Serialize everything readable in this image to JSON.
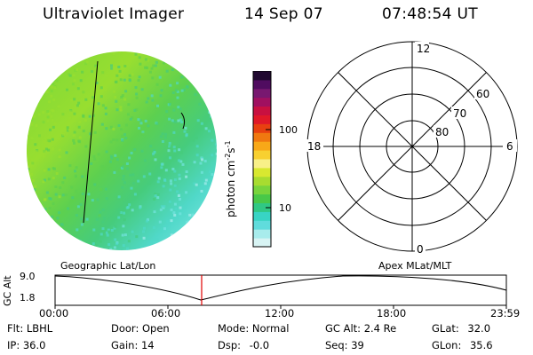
{
  "header": {
    "instrument": "Ultraviolet Imager",
    "date": "14 Sep 07",
    "time": "07:48:54 UT"
  },
  "colorbar": {
    "unit_label": "photon cm",
    "unit_exp1": "-2",
    "unit_s": "s",
    "unit_exp2": "-1",
    "tick_high": "100",
    "tick_low": "10",
    "colors": [
      "#d8f4f4",
      "#a8ecec",
      "#60dcdc",
      "#38d4c4",
      "#30c884",
      "#48c848",
      "#78d43c",
      "#a8dc30",
      "#d8e830",
      "#f8f088",
      "#f8d030",
      "#f8a818",
      "#f07810",
      "#e84010",
      "#e01828",
      "#c81040",
      "#a01060",
      "#781870",
      "#500c60",
      "#200830"
    ]
  },
  "polar": {
    "mlt_top": "12",
    "mlt_bottom": "0",
    "mlt_left": "18",
    "mlt_right": "6",
    "lat_60": "60",
    "lat_70": "70",
    "lat_80": "80"
  },
  "image": {
    "disk_colors": [
      "#7ad83a",
      "#98de30",
      "#5cd050",
      "#46cc7c",
      "#50d8c8",
      "#74e4e0",
      "#a6ecec"
    ]
  },
  "timeline": {
    "left_title": "Geographic Lat/Lon",
    "right_title": "Apex MLat/MLT",
    "axis_label": "GC Alt",
    "y_high": "9.0",
    "y_low": "1.8",
    "x_ticks": [
      "00:00",
      "06:00",
      "12:00",
      "18:00",
      "23:59"
    ],
    "marker_color": "#e00000"
  },
  "status": {
    "flt_label": "Flt:",
    "flt_value": "LBHL",
    "ip_label": "IP:",
    "ip_value": "36.0",
    "door_label": "Door:",
    "door_value": "Open",
    "gain_label": "Gain:",
    "gain_value": "14",
    "mode_label": "Mode:",
    "mode_value": "Normal",
    "dsp_label": "Dsp:",
    "dsp_value": "-0.0",
    "gcalt_label": "GC Alt:",
    "gcalt_value": "2.4 Re",
    "seq_label": "Seq:",
    "seq_value": "39",
    "glat_label": "GLat:",
    "glat_value": "32.0",
    "glon_label": "GLon:",
    "glon_value": "35.6"
  }
}
